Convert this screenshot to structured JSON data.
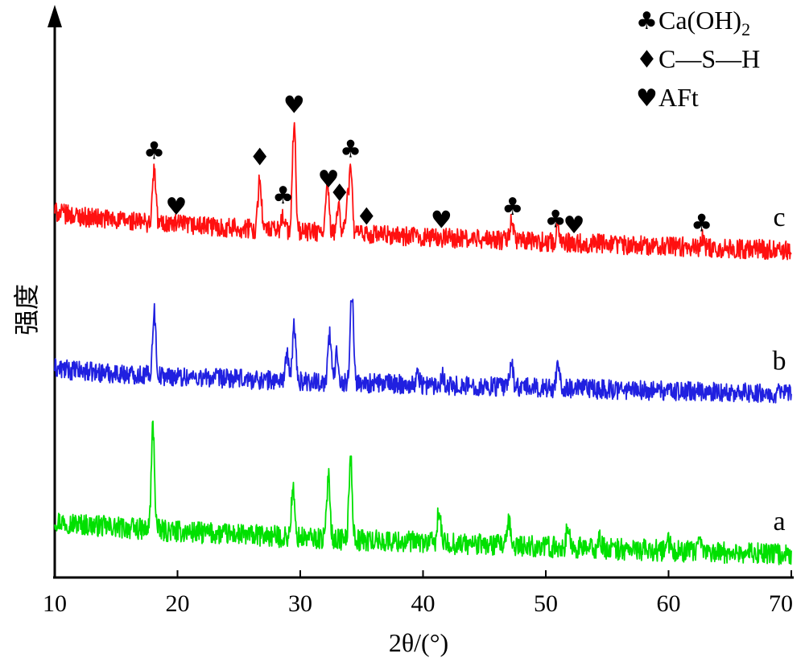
{
  "chart_data": {
    "type": "line",
    "title": "",
    "xlabel": "2θ/(°)",
    "ylabel": "强度",
    "xlim": [
      10,
      70
    ],
    "x_ticks": [
      "10",
      "20",
      "30",
      "40",
      "50",
      "60",
      "70"
    ],
    "y_ticks_shown": false,
    "grid": false,
    "legend": {
      "placement": "top-right",
      "entries": [
        {
          "symbol": "♣",
          "label": "Ca(OH)",
          "subscript": "2"
        },
        {
          "symbol": "♦",
          "label": "C—S—H"
        },
        {
          "symbol": "♥",
          "label": "AFt"
        }
      ]
    },
    "series": [
      {
        "name": "a",
        "color": "#00e000",
        "baseline_start": 0.2,
        "baseline_end": 0.04,
        "peaks": [
          [
            18.0,
            0.48
          ],
          [
            29.4,
            0.22
          ],
          [
            32.3,
            0.3
          ],
          [
            34.1,
            0.38
          ],
          [
            41.3,
            0.15
          ],
          [
            47.0,
            0.1
          ],
          [
            51.8,
            0.09
          ],
          [
            54.4,
            0.04
          ],
          [
            60.0,
            0.04
          ],
          [
            62.6,
            0.04
          ]
        ],
        "noise": 0.05
      },
      {
        "name": "b",
        "color": "#2020e0",
        "baseline_start": 0.9,
        "baseline_end": 0.78,
        "peaks": [
          [
            18.1,
            0.3
          ],
          [
            28.9,
            0.12
          ],
          [
            29.5,
            0.26
          ],
          [
            32.4,
            0.22
          ],
          [
            33.0,
            0.14
          ],
          [
            34.2,
            0.42
          ],
          [
            39.6,
            0.05
          ],
          [
            41.6,
            0.05
          ],
          [
            47.2,
            0.12
          ],
          [
            51.0,
            0.13
          ]
        ],
        "noise": 0.045
      },
      {
        "name": "c",
        "color": "#ff1010",
        "baseline_start": 1.62,
        "baseline_end": 1.44,
        "peaks": [
          [
            18.1,
            0.25
          ],
          [
            26.7,
            0.25
          ],
          [
            28.6,
            0.08
          ],
          [
            29.5,
            0.5
          ],
          [
            32.2,
            0.22
          ],
          [
            33.1,
            0.14
          ],
          [
            33.8,
            0.12
          ],
          [
            34.1,
            0.3
          ],
          [
            47.2,
            0.1
          ],
          [
            51.0,
            0.08
          ],
          [
            62.8,
            0.04
          ]
        ],
        "noise": 0.045
      }
    ],
    "phase_markers": [
      {
        "phase": "Ca(OH)2",
        "symbol": "♣",
        "x": 18.1
      },
      {
        "phase": "AFt",
        "symbol": "♥",
        "x": 19.9
      },
      {
        "phase": "C—S—H",
        "symbol": "♦",
        "x": 26.7
      },
      {
        "phase": "Ca(OH)2",
        "symbol": "♣",
        "x": 28.6
      },
      {
        "phase": "AFt",
        "symbol": "♥",
        "x": 29.5
      },
      {
        "phase": "AFt",
        "symbol": "♥",
        "x": 32.3
      },
      {
        "phase": "C—S—H",
        "symbol": "♦",
        "x": 33.2
      },
      {
        "phase": "Ca(OH)2",
        "symbol": "♣",
        "x": 34.1
      },
      {
        "phase": "C—S—H",
        "symbol": "♦",
        "x": 35.4
      },
      {
        "phase": "AFt",
        "symbol": "♥",
        "x": 41.5
      },
      {
        "phase": "Ca(OH)2",
        "symbol": "♣",
        "x": 47.3
      },
      {
        "phase": "Ca(OH)2",
        "symbol": "♣",
        "x": 50.8
      },
      {
        "phase": "AFt",
        "symbol": "♥",
        "x": 52.3
      },
      {
        "phase": "Ca(OH)2",
        "symbol": "♣",
        "x": 62.7
      }
    ]
  }
}
